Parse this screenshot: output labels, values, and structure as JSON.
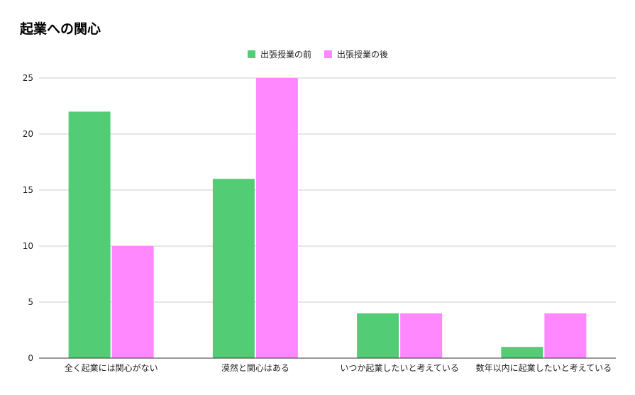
{
  "chart_data": {
    "type": "bar",
    "title": "起業への関心",
    "xlabel": "",
    "ylabel": "",
    "categories": [
      "全く起業には関心がない",
      "漠然と関心はある",
      "いつか起業したいと考えている",
      "数年以内に起業したいと考えている"
    ],
    "series": [
      {
        "name": "出張授業の前",
        "color": "#53cc76",
        "values": [
          22,
          16,
          4,
          1
        ]
      },
      {
        "name": "出張授業の後",
        "color": "#ff88ff",
        "values": [
          10,
          25,
          4,
          4
        ]
      }
    ],
    "ylim": [
      0,
      25
    ],
    "yticks": [
      0,
      5,
      10,
      15,
      20,
      25
    ],
    "grid": true,
    "legend_position": "top-center",
    "colors": {
      "gridline": "#cccccc",
      "axis": "#333333",
      "text": "#222222"
    }
  }
}
